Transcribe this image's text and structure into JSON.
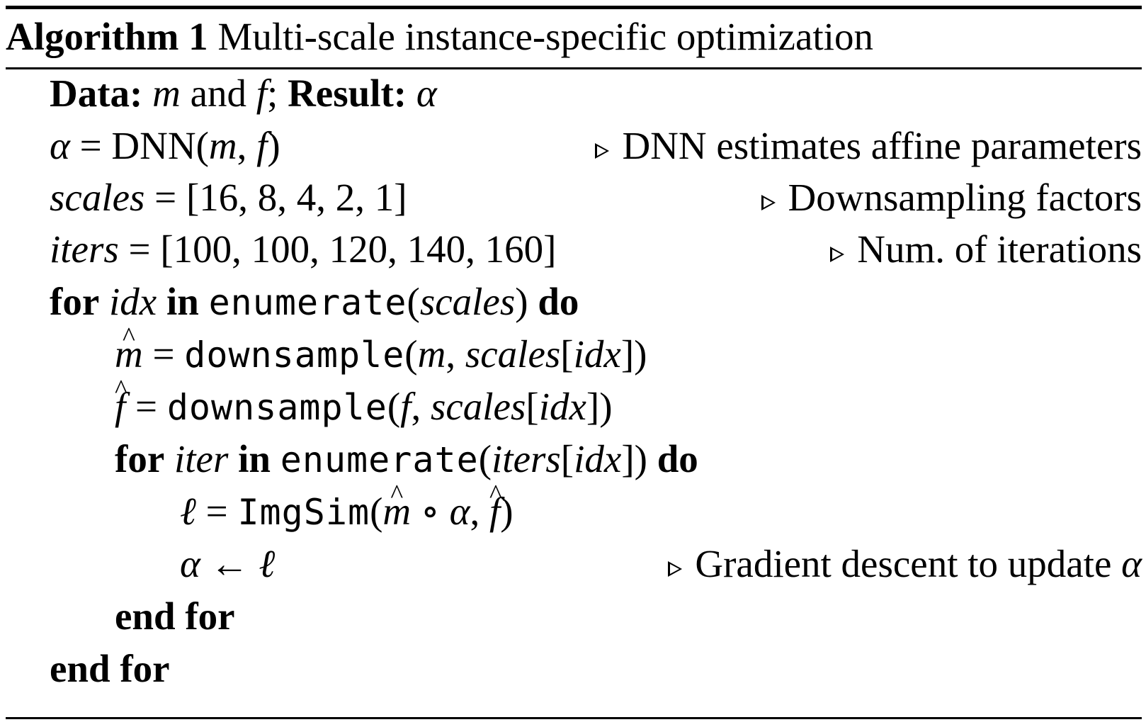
{
  "algorithm": {
    "label": "Algorithm 1",
    "title": "Multi-scale instance-specific optimization"
  },
  "tokens": {
    "data_kw": "Data:",
    "result_kw": "Result:",
    "for_kw": "for",
    "in_kw": "in",
    "do_kw": "do",
    "end_for": "end for",
    "and_word": "and",
    "alpha": "α",
    "ell": "ℓ",
    "m": "m",
    "f": "f",
    "scales": "scales",
    "iters": "iters",
    "idx": "idx",
    "iter": "iter",
    "dnn": "DNN",
    "enumerate": "enumerate",
    "downsample": "downsample",
    "imgsim": "ImgSim",
    "scales_list": "[16, 8, 4, 2, 1]",
    "iters_list": "[100, 100, 120, 140, 160]"
  },
  "comments": {
    "dnn": "DNN estimates affine parameters",
    "scales": "Downsampling factors",
    "iters": "Num. of iterations",
    "update": "Gradient descent to update"
  }
}
